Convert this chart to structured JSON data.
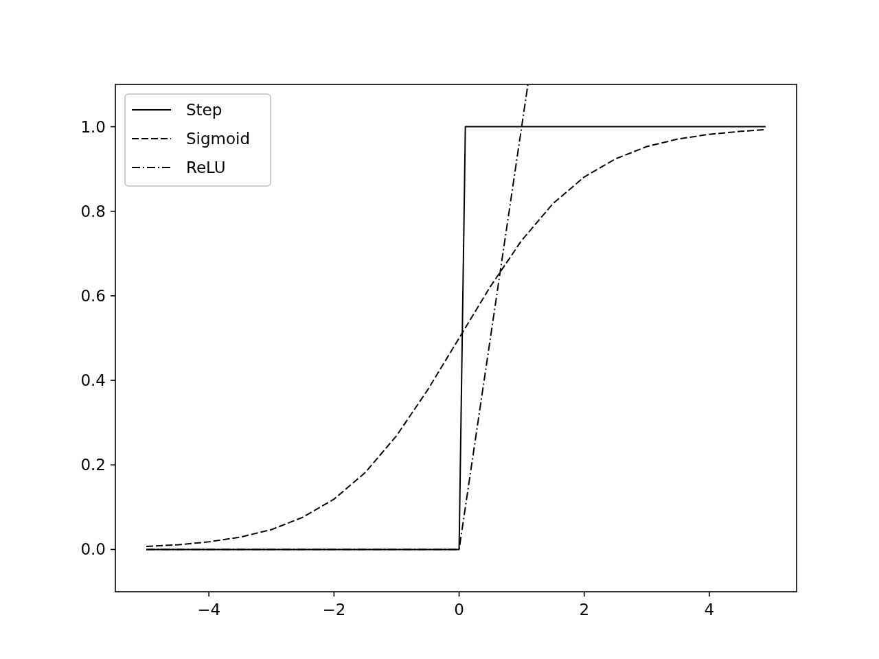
{
  "chart_data": {
    "type": "line",
    "xlim": [
      -5.495,
      5.395
    ],
    "ylim": [
      -0.1,
      1.1
    ],
    "xticks": [
      {
        "value": -4,
        "label": "−4"
      },
      {
        "value": -2,
        "label": "−2"
      },
      0,
      2,
      4
    ],
    "yticks": [
      {
        "value": 0,
        "label": "0.0"
      },
      {
        "value": 0.2,
        "label": "0.2"
      },
      {
        "value": 0.4,
        "label": "0.4"
      },
      {
        "value": 0.6,
        "label": "0.6"
      },
      {
        "value": 0.8,
        "label": "0.8"
      },
      {
        "value": 1,
        "label": "1.0"
      }
    ],
    "grid": false,
    "legend": "top left",
    "series": [
      {
        "name": "Step",
        "color": "#000000",
        "line_style": "solid",
        "x": [
          -5,
          0,
          0.1,
          4.9
        ],
        "values": [
          0,
          0,
          1,
          1
        ]
      },
      {
        "name": "Sigmoid",
        "color": "#000000",
        "line_style": "dashed",
        "x": [
          -5,
          -4.5,
          -4,
          -3.5,
          -3,
          -2.5,
          -2,
          -1.5,
          -1,
          -0.5,
          0,
          0.5,
          1,
          1.5,
          2,
          2.5,
          3,
          3.5,
          4,
          4.5,
          4.9
        ],
        "values": [
          0.007,
          0.011,
          0.018,
          0.029,
          0.047,
          0.076,
          0.119,
          0.182,
          0.269,
          0.378,
          0.5,
          0.622,
          0.731,
          0.818,
          0.881,
          0.924,
          0.953,
          0.971,
          0.982,
          0.989,
          0.993
        ]
      },
      {
        "name": "ReLU",
        "color": "#000000",
        "line_style": "dashdot",
        "x": [
          -5,
          0,
          1.1
        ],
        "values": [
          0,
          0,
          1.1
        ]
      }
    ]
  }
}
